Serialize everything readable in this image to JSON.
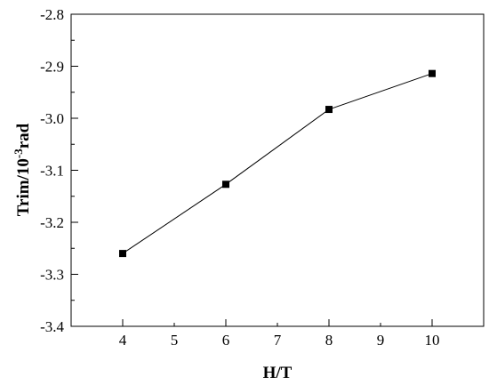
{
  "chart_data": {
    "type": "line",
    "xlabel": "H/T",
    "ylabel": {
      "prefix": "Trim/10",
      "superscript": "-3",
      "suffix": "rad"
    },
    "x": [
      4,
      6,
      8,
      10
    ],
    "series": [
      {
        "values": [
          -3.26,
          -3.127,
          -2.983,
          -2.914
        ]
      }
    ],
    "xlim": [
      3,
      11
    ],
    "ylim": [
      -3.4,
      -2.8
    ],
    "xticks": [
      "4",
      "5",
      "6",
      "7",
      "8",
      "9",
      "10"
    ],
    "yticks": [
      "-2.8",
      "-2.9",
      "-3.0",
      "-3.1",
      "-3.2",
      "-3.3",
      "-3.4"
    ],
    "marker": "square",
    "line_color": "#000000",
    "grid": false,
    "legend": "none"
  }
}
